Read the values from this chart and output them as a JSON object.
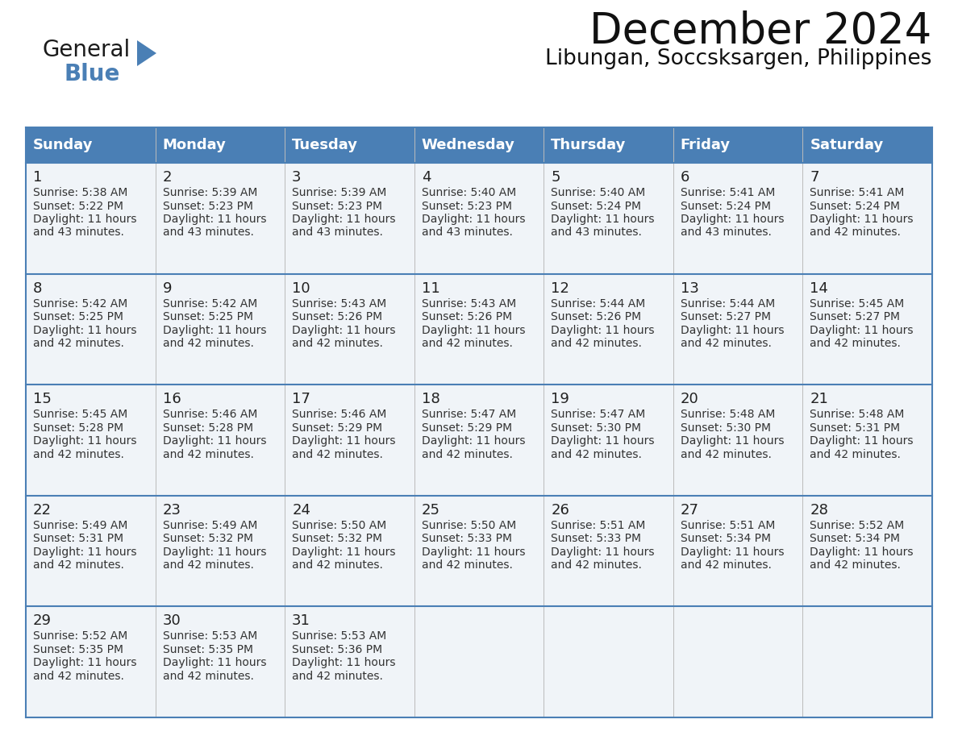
{
  "title": "December 2024",
  "subtitle": "Libungan, Soccsksargen, Philippines",
  "header_color": "#4a7fb5",
  "header_text_color": "#ffffff",
  "days_of_week": [
    "Sunday",
    "Monday",
    "Tuesday",
    "Wednesday",
    "Thursday",
    "Friday",
    "Saturday"
  ],
  "background_color": "#ffffff",
  "cell_bg_color": "#f0f4f8",
  "border_color": "#4a7fb5",
  "text_color": "#333333",
  "calendar_data": [
    [
      {
        "day": 1,
        "sunrise": "5:38 AM",
        "sunset": "5:22 PM",
        "daylight_hours": 11,
        "daylight_mins": "43"
      },
      {
        "day": 2,
        "sunrise": "5:39 AM",
        "sunset": "5:23 PM",
        "daylight_hours": 11,
        "daylight_mins": "43"
      },
      {
        "day": 3,
        "sunrise": "5:39 AM",
        "sunset": "5:23 PM",
        "daylight_hours": 11,
        "daylight_mins": "43"
      },
      {
        "day": 4,
        "sunrise": "5:40 AM",
        "sunset": "5:23 PM",
        "daylight_hours": 11,
        "daylight_mins": "43"
      },
      {
        "day": 5,
        "sunrise": "5:40 AM",
        "sunset": "5:24 PM",
        "daylight_hours": 11,
        "daylight_mins": "43"
      },
      {
        "day": 6,
        "sunrise": "5:41 AM",
        "sunset": "5:24 PM",
        "daylight_hours": 11,
        "daylight_mins": "43"
      },
      {
        "day": 7,
        "sunrise": "5:41 AM",
        "sunset": "5:24 PM",
        "daylight_hours": 11,
        "daylight_mins": "42"
      }
    ],
    [
      {
        "day": 8,
        "sunrise": "5:42 AM",
        "sunset": "5:25 PM",
        "daylight_hours": 11,
        "daylight_mins": "42"
      },
      {
        "day": 9,
        "sunrise": "5:42 AM",
        "sunset": "5:25 PM",
        "daylight_hours": 11,
        "daylight_mins": "42"
      },
      {
        "day": 10,
        "sunrise": "5:43 AM",
        "sunset": "5:26 PM",
        "daylight_hours": 11,
        "daylight_mins": "42"
      },
      {
        "day": 11,
        "sunrise": "5:43 AM",
        "sunset": "5:26 PM",
        "daylight_hours": 11,
        "daylight_mins": "42"
      },
      {
        "day": 12,
        "sunrise": "5:44 AM",
        "sunset": "5:26 PM",
        "daylight_hours": 11,
        "daylight_mins": "42"
      },
      {
        "day": 13,
        "sunrise": "5:44 AM",
        "sunset": "5:27 PM",
        "daylight_hours": 11,
        "daylight_mins": "42"
      },
      {
        "day": 14,
        "sunrise": "5:45 AM",
        "sunset": "5:27 PM",
        "daylight_hours": 11,
        "daylight_mins": "42"
      }
    ],
    [
      {
        "day": 15,
        "sunrise": "5:45 AM",
        "sunset": "5:28 PM",
        "daylight_hours": 11,
        "daylight_mins": "42"
      },
      {
        "day": 16,
        "sunrise": "5:46 AM",
        "sunset": "5:28 PM",
        "daylight_hours": 11,
        "daylight_mins": "42"
      },
      {
        "day": 17,
        "sunrise": "5:46 AM",
        "sunset": "5:29 PM",
        "daylight_hours": 11,
        "daylight_mins": "42"
      },
      {
        "day": 18,
        "sunrise": "5:47 AM",
        "sunset": "5:29 PM",
        "daylight_hours": 11,
        "daylight_mins": "42"
      },
      {
        "day": 19,
        "sunrise": "5:47 AM",
        "sunset": "5:30 PM",
        "daylight_hours": 11,
        "daylight_mins": "42"
      },
      {
        "day": 20,
        "sunrise": "5:48 AM",
        "sunset": "5:30 PM",
        "daylight_hours": 11,
        "daylight_mins": "42"
      },
      {
        "day": 21,
        "sunrise": "5:48 AM",
        "sunset": "5:31 PM",
        "daylight_hours": 11,
        "daylight_mins": "42"
      }
    ],
    [
      {
        "day": 22,
        "sunrise": "5:49 AM",
        "sunset": "5:31 PM",
        "daylight_hours": 11,
        "daylight_mins": "42"
      },
      {
        "day": 23,
        "sunrise": "5:49 AM",
        "sunset": "5:32 PM",
        "daylight_hours": 11,
        "daylight_mins": "42"
      },
      {
        "day": 24,
        "sunrise": "5:50 AM",
        "sunset": "5:32 PM",
        "daylight_hours": 11,
        "daylight_mins": "42"
      },
      {
        "day": 25,
        "sunrise": "5:50 AM",
        "sunset": "5:33 PM",
        "daylight_hours": 11,
        "daylight_mins": "42"
      },
      {
        "day": 26,
        "sunrise": "5:51 AM",
        "sunset": "5:33 PM",
        "daylight_hours": 11,
        "daylight_mins": "42"
      },
      {
        "day": 27,
        "sunrise": "5:51 AM",
        "sunset": "5:34 PM",
        "daylight_hours": 11,
        "daylight_mins": "42"
      },
      {
        "day": 28,
        "sunrise": "5:52 AM",
        "sunset": "5:34 PM",
        "daylight_hours": 11,
        "daylight_mins": "42"
      }
    ],
    [
      {
        "day": 29,
        "sunrise": "5:52 AM",
        "sunset": "5:35 PM",
        "daylight_hours": 11,
        "daylight_mins": "42"
      },
      {
        "day": 30,
        "sunrise": "5:53 AM",
        "sunset": "5:35 PM",
        "daylight_hours": 11,
        "daylight_mins": "42"
      },
      {
        "day": 31,
        "sunrise": "5:53 AM",
        "sunset": "5:36 PM",
        "daylight_hours": 11,
        "daylight_mins": "42"
      },
      null,
      null,
      null,
      null
    ]
  ],
  "logo_text_general": "General",
  "logo_text_blue": "Blue",
  "logo_color_general": "#1a1a1a",
  "logo_color_blue": "#4a7fb5",
  "logo_triangle_color": "#4a7fb5",
  "title_fontsize": 38,
  "subtitle_fontsize": 19,
  "header_fontsize": 13,
  "day_num_fontsize": 13,
  "cell_text_fontsize": 10
}
